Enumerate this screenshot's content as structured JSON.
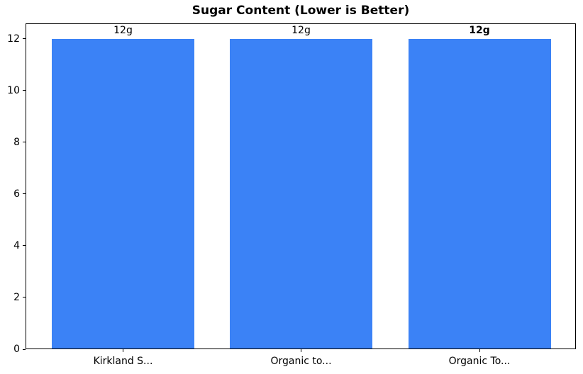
{
  "chart_data": {
    "type": "bar",
    "title": "Sugar Content (Lower is Better)",
    "categories": [
      "Kirkland S...",
      "Organic to...",
      "Organic To..."
    ],
    "values": [
      12,
      12,
      12
    ],
    "bar_labels": [
      "12g",
      "12g",
      "12g"
    ],
    "bar_label_bold": [
      false,
      false,
      true
    ],
    "bar_color": "#3b82f6",
    "xlabel": "",
    "ylabel": "",
    "yticks": [
      0,
      2,
      4,
      6,
      8,
      10,
      12
    ],
    "ylim": [
      0,
      12.6
    ],
    "grid": false,
    "legend_position": "none",
    "axis_color": "#000000",
    "text_color": "#000000",
    "background_color": "#ffffff"
  }
}
